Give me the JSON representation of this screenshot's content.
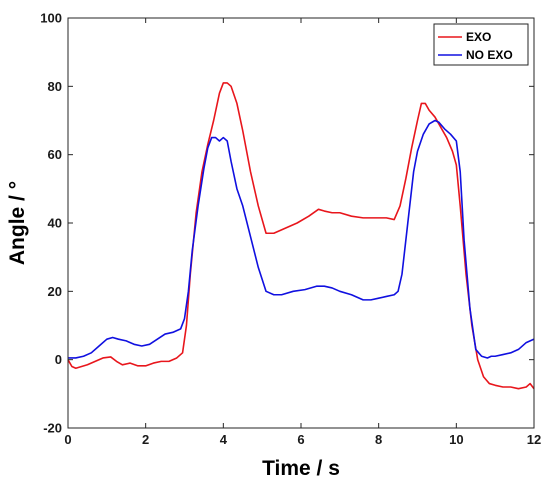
{
  "chart_data": {
    "type": "line",
    "xlabel": "Time / s",
    "ylabel": "Angle / °",
    "xlim": [
      0,
      12
    ],
    "ylim": [
      -20,
      100
    ],
    "x_ticks": [
      0,
      2,
      4,
      6,
      8,
      10,
      12
    ],
    "y_ticks": [
      -20,
      0,
      20,
      40,
      60,
      80,
      100
    ],
    "grid": false,
    "legend_position": "top-right",
    "series": [
      {
        "name": "EXO",
        "color": "#e8161c",
        "x": [
          0,
          0.1,
          0.2,
          0.35,
          0.5,
          0.7,
          0.9,
          1.1,
          1.25,
          1.4,
          1.6,
          1.8,
          2.0,
          2.2,
          2.4,
          2.6,
          2.8,
          2.95,
          3.05,
          3.15,
          3.3,
          3.45,
          3.6,
          3.75,
          3.9,
          4.0,
          4.1,
          4.2,
          4.35,
          4.5,
          4.7,
          4.9,
          5.1,
          5.3,
          5.6,
          5.9,
          6.2,
          6.45,
          6.6,
          6.8,
          7.0,
          7.3,
          7.6,
          7.9,
          8.2,
          8.4,
          8.55,
          8.7,
          8.85,
          9.0,
          9.1,
          9.2,
          9.3,
          9.45,
          9.6,
          9.75,
          9.9,
          10.0,
          10.1,
          10.25,
          10.4,
          10.55,
          10.7,
          10.85,
          11.0,
          11.2,
          11.4,
          11.6,
          11.8,
          11.9,
          12.0
        ],
        "y": [
          0,
          -2,
          -2.5,
          -2,
          -1.5,
          -0.5,
          0.5,
          0.8,
          -0.5,
          -1.5,
          -1,
          -1.8,
          -1.8,
          -1,
          -0.5,
          -0.5,
          0.5,
          2,
          10,
          25,
          43,
          55,
          63,
          70,
          78,
          81,
          81,
          80,
          75,
          67,
          55,
          45,
          37,
          37,
          38.5,
          40,
          42,
          44,
          43.5,
          43,
          43,
          42,
          41.5,
          41.5,
          41.5,
          41,
          45,
          53,
          62,
          70,
          75,
          75,
          73,
          71,
          68,
          65,
          61,
          57,
          45,
          25,
          10,
          0,
          -5,
          -7,
          -7.5,
          -8,
          -8,
          -8.5,
          -8,
          -7,
          -8.5
        ],
        "legend_label": "EXO"
      },
      {
        "name": "NO EXO",
        "color": "#1010e0",
        "x": [
          0,
          0.2,
          0.4,
          0.6,
          0.8,
          1.0,
          1.15,
          1.3,
          1.5,
          1.7,
          1.9,
          2.1,
          2.3,
          2.5,
          2.7,
          2.9,
          3.0,
          3.1,
          3.2,
          3.35,
          3.5,
          3.6,
          3.7,
          3.8,
          3.9,
          4.0,
          4.1,
          4.2,
          4.35,
          4.5,
          4.7,
          4.9,
          5.1,
          5.3,
          5.5,
          5.8,
          6.1,
          6.4,
          6.6,
          6.8,
          7.0,
          7.3,
          7.6,
          7.8,
          8.0,
          8.2,
          8.4,
          8.5,
          8.6,
          8.75,
          8.9,
          9.0,
          9.15,
          9.3,
          9.45,
          9.55,
          9.7,
          9.85,
          10.0,
          10.1,
          10.2,
          10.35,
          10.5,
          10.65,
          10.8,
          10.9,
          11.0,
          11.2,
          11.4,
          11.6,
          11.8,
          12.0
        ],
        "y": [
          0.5,
          0.5,
          1,
          2,
          4,
          6,
          6.5,
          6,
          5.5,
          4.5,
          4,
          4.5,
          6,
          7.5,
          8,
          9,
          12,
          20,
          32,
          45,
          56,
          62,
          65,
          65,
          64,
          65,
          64,
          58,
          50,
          45,
          36,
          27,
          20,
          19,
          19,
          20,
          20.5,
          21.5,
          21.5,
          21,
          20,
          19,
          17.5,
          17.5,
          18,
          18.5,
          19,
          20,
          25,
          40,
          55,
          61,
          66,
          69,
          70,
          69.5,
          67.5,
          66,
          64,
          55,
          35,
          15,
          3,
          1,
          0.5,
          1,
          1,
          1.5,
          2,
          3,
          5,
          6
        ]
      }
    ]
  }
}
